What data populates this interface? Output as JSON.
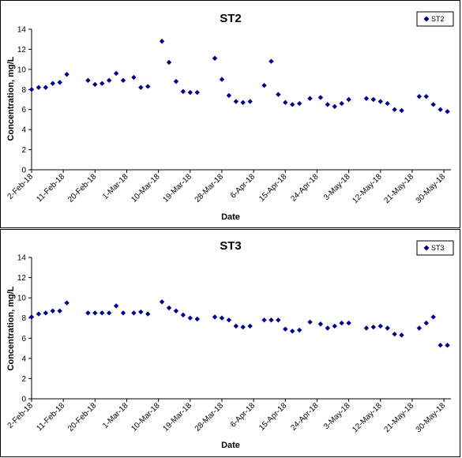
{
  "chart_data": [
    {
      "type": "scatter",
      "title": "ST2",
      "xlabel": "Date",
      "ylabel": "Concentration, mg/L",
      "ylim": [
        0,
        14
      ],
      "yticks": [
        "0",
        "2",
        "4",
        "6",
        "8",
        "10",
        "12",
        "14"
      ],
      "xlim": [
        "2018-02-02",
        "2018-06-01"
      ],
      "xticks": [
        {
          "date": "2018-02-02",
          "label": "2-Feb-18"
        },
        {
          "date": "2018-02-11",
          "label": "11-Feb-18"
        },
        {
          "date": "2018-02-20",
          "label": "20-Feb-18"
        },
        {
          "date": "2018-03-01",
          "label": "1-Mar-18"
        },
        {
          "date": "2018-03-10",
          "label": "10-Mar-18"
        },
        {
          "date": "2018-03-19",
          "label": "19-Mar-18"
        },
        {
          "date": "2018-03-28",
          "label": "28-Mar-18"
        },
        {
          "date": "2018-04-06",
          "label": "6-Apr-18"
        },
        {
          "date": "2018-04-15",
          "label": "15-Apr-18"
        },
        {
          "date": "2018-04-24",
          "label": "24-Apr-18"
        },
        {
          "date": "2018-05-03",
          "label": "3-May-18"
        },
        {
          "date": "2018-05-12",
          "label": "12-May-18"
        },
        {
          "date": "2018-05-21",
          "label": "21-May-18"
        },
        {
          "date": "2018-05-30",
          "label": "30-May-18"
        }
      ],
      "legend_position": "top-right",
      "marker_color": "#00008B",
      "series": [
        {
          "name": "ST2",
          "points": [
            {
              "x": "2018-02-02",
              "y": 8.0
            },
            {
              "x": "2018-02-04",
              "y": 8.2
            },
            {
              "x": "2018-02-06",
              "y": 8.2
            },
            {
              "x": "2018-02-08",
              "y": 8.6
            },
            {
              "x": "2018-02-10",
              "y": 8.7
            },
            {
              "x": "2018-02-12",
              "y": 9.5
            },
            {
              "x": "2018-02-18",
              "y": 8.9
            },
            {
              "x": "2018-02-20",
              "y": 8.5
            },
            {
              "x": "2018-02-22",
              "y": 8.6
            },
            {
              "x": "2018-02-24",
              "y": 8.9
            },
            {
              "x": "2018-02-26",
              "y": 9.6
            },
            {
              "x": "2018-02-28",
              "y": 8.9
            },
            {
              "x": "2018-03-03",
              "y": 9.2
            },
            {
              "x": "2018-03-05",
              "y": 8.2
            },
            {
              "x": "2018-03-07",
              "y": 8.3
            },
            {
              "x": "2018-03-11",
              "y": 12.8
            },
            {
              "x": "2018-03-13",
              "y": 10.7
            },
            {
              "x": "2018-03-15",
              "y": 8.8
            },
            {
              "x": "2018-03-17",
              "y": 7.8
            },
            {
              "x": "2018-03-19",
              "y": 7.7
            },
            {
              "x": "2018-03-21",
              "y": 7.7
            },
            {
              "x": "2018-03-26",
              "y": 11.1
            },
            {
              "x": "2018-03-28",
              "y": 9.0
            },
            {
              "x": "2018-03-30",
              "y": 7.4
            },
            {
              "x": "2018-04-01",
              "y": 6.8
            },
            {
              "x": "2018-04-03",
              "y": 6.7
            },
            {
              "x": "2018-04-05",
              "y": 6.8
            },
            {
              "x": "2018-04-09",
              "y": 8.4
            },
            {
              "x": "2018-04-11",
              "y": 10.8
            },
            {
              "x": "2018-04-13",
              "y": 7.5
            },
            {
              "x": "2018-04-15",
              "y": 6.7
            },
            {
              "x": "2018-04-17",
              "y": 6.5
            },
            {
              "x": "2018-04-19",
              "y": 6.6
            },
            {
              "x": "2018-04-22",
              "y": 7.1
            },
            {
              "x": "2018-04-25",
              "y": 7.2
            },
            {
              "x": "2018-04-27",
              "y": 6.5
            },
            {
              "x": "2018-04-29",
              "y": 6.3
            },
            {
              "x": "2018-05-01",
              "y": 6.6
            },
            {
              "x": "2018-05-03",
              "y": 7.0
            },
            {
              "x": "2018-05-08",
              "y": 7.1
            },
            {
              "x": "2018-05-10",
              "y": 7.0
            },
            {
              "x": "2018-05-12",
              "y": 6.8
            },
            {
              "x": "2018-05-14",
              "y": 6.6
            },
            {
              "x": "2018-05-16",
              "y": 6.0
            },
            {
              "x": "2018-05-18",
              "y": 5.9
            },
            {
              "x": "2018-05-23",
              "y": 7.3
            },
            {
              "x": "2018-05-25",
              "y": 7.3
            },
            {
              "x": "2018-05-27",
              "y": 6.5
            },
            {
              "x": "2018-05-29",
              "y": 6.0
            },
            {
              "x": "2018-05-31",
              "y": 5.8
            }
          ]
        }
      ]
    },
    {
      "type": "scatter",
      "title": "ST3",
      "xlabel": "Date",
      "ylabel": "Concentration, mg/L",
      "ylim": [
        0,
        14
      ],
      "yticks": [
        "0",
        "2",
        "4",
        "6",
        "8",
        "10",
        "12",
        "14"
      ],
      "xlim": [
        "2018-02-02",
        "2018-06-01"
      ],
      "xticks": [
        {
          "date": "2018-02-02",
          "label": "2-Feb-18"
        },
        {
          "date": "2018-02-11",
          "label": "11-Feb-18"
        },
        {
          "date": "2018-02-20",
          "label": "20-Feb-18"
        },
        {
          "date": "2018-03-01",
          "label": "1-Mar-18"
        },
        {
          "date": "2018-03-10",
          "label": "10-Mar-18"
        },
        {
          "date": "2018-03-19",
          "label": "19-Mar-18"
        },
        {
          "date": "2018-03-28",
          "label": "28-Mar-18"
        },
        {
          "date": "2018-04-06",
          "label": "6-Apr-18"
        },
        {
          "date": "2018-04-15",
          "label": "15-Apr-18"
        },
        {
          "date": "2018-04-24",
          "label": "24-Apr-18"
        },
        {
          "date": "2018-05-03",
          "label": "3-May-18"
        },
        {
          "date": "2018-05-12",
          "label": "12-May-18"
        },
        {
          "date": "2018-05-21",
          "label": "21-May-18"
        },
        {
          "date": "2018-05-30",
          "label": "30-May-18"
        }
      ],
      "legend_position": "top-right",
      "marker_color": "#00008B",
      "series": [
        {
          "name": "ST3",
          "points": [
            {
              "x": "2018-02-02",
              "y": 8.1
            },
            {
              "x": "2018-02-04",
              "y": 8.4
            },
            {
              "x": "2018-02-06",
              "y": 8.5
            },
            {
              "x": "2018-02-08",
              "y": 8.7
            },
            {
              "x": "2018-02-10",
              "y": 8.7
            },
            {
              "x": "2018-02-12",
              "y": 9.5
            },
            {
              "x": "2018-02-18",
              "y": 8.5
            },
            {
              "x": "2018-02-20",
              "y": 8.5
            },
            {
              "x": "2018-02-22",
              "y": 8.5
            },
            {
              "x": "2018-02-24",
              "y": 8.5
            },
            {
              "x": "2018-02-26",
              "y": 9.2
            },
            {
              "x": "2018-02-28",
              "y": 8.5
            },
            {
              "x": "2018-03-03",
              "y": 8.5
            },
            {
              "x": "2018-03-05",
              "y": 8.6
            },
            {
              "x": "2018-03-07",
              "y": 8.4
            },
            {
              "x": "2018-03-11",
              "y": 9.6
            },
            {
              "x": "2018-03-13",
              "y": 9.0
            },
            {
              "x": "2018-03-15",
              "y": 8.7
            },
            {
              "x": "2018-03-17",
              "y": 8.3
            },
            {
              "x": "2018-03-19",
              "y": 8.0
            },
            {
              "x": "2018-03-21",
              "y": 7.9
            },
            {
              "x": "2018-03-26",
              "y": 8.1
            },
            {
              "x": "2018-03-28",
              "y": 8.0
            },
            {
              "x": "2018-03-30",
              "y": 7.8
            },
            {
              "x": "2018-04-01",
              "y": 7.2
            },
            {
              "x": "2018-04-03",
              "y": 7.1
            },
            {
              "x": "2018-04-05",
              "y": 7.2
            },
            {
              "x": "2018-04-09",
              "y": 7.8
            },
            {
              "x": "2018-04-11",
              "y": 7.8
            },
            {
              "x": "2018-04-13",
              "y": 7.8
            },
            {
              "x": "2018-04-15",
              "y": 6.9
            },
            {
              "x": "2018-04-17",
              "y": 6.7
            },
            {
              "x": "2018-04-19",
              "y": 6.8
            },
            {
              "x": "2018-04-22",
              "y": 7.6
            },
            {
              "x": "2018-04-25",
              "y": 7.4
            },
            {
              "x": "2018-04-27",
              "y": 7.0
            },
            {
              "x": "2018-04-29",
              "y": 7.2
            },
            {
              "x": "2018-05-01",
              "y": 7.5
            },
            {
              "x": "2018-05-03",
              "y": 7.5
            },
            {
              "x": "2018-05-08",
              "y": 7.0
            },
            {
              "x": "2018-05-10",
              "y": 7.1
            },
            {
              "x": "2018-05-12",
              "y": 7.2
            },
            {
              "x": "2018-05-14",
              "y": 7.0
            },
            {
              "x": "2018-05-16",
              "y": 6.4
            },
            {
              "x": "2018-05-18",
              "y": 6.3
            },
            {
              "x": "2018-05-23",
              "y": 7.0
            },
            {
              "x": "2018-05-25",
              "y": 7.5
            },
            {
              "x": "2018-05-27",
              "y": 8.1
            },
            {
              "x": "2018-05-29",
              "y": 5.3
            },
            {
              "x": "2018-05-31",
              "y": 5.3
            }
          ]
        }
      ]
    }
  ]
}
